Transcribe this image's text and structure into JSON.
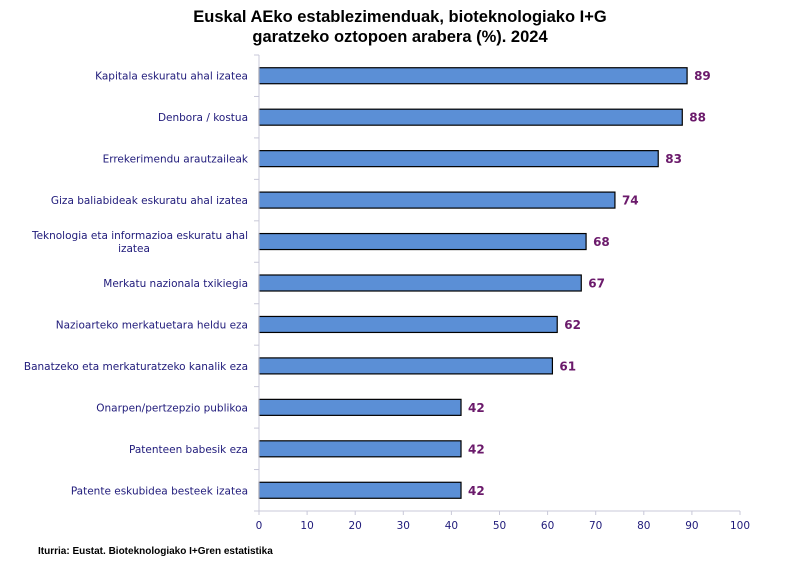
{
  "chart_data": {
    "type": "bar",
    "orientation": "horizontal",
    "title": [
      "Euskal AEko establezimenduak,  bioteknologiako I+G",
      "garatzeko oztopoen arabera (%). 2024"
    ],
    "xlabel": "",
    "ylabel": "",
    "xlim": [
      0,
      100
    ],
    "xticks": [
      0,
      10,
      20,
      30,
      40,
      50,
      60,
      70,
      80,
      90,
      100
    ],
    "grid": false,
    "legend": "none",
    "categories": [
      [
        "Kapitala eskuratu ahal izatea"
      ],
      [
        "Denbora / kostua"
      ],
      [
        "Errekerimendu arautzaileak"
      ],
      [
        "Giza baliabideak eskuratu ahal izatea"
      ],
      [
        "Teknologia eta informazioa eskuratu ahal",
        "izatea"
      ],
      [
        "Merkatu nazionala txikiegia"
      ],
      [
        "Nazioarteko merkatuetara heldu eza"
      ],
      [
        "Banatzeko eta merkaturatzeko kanalik eza"
      ],
      [
        "Onarpen/pertzepzio publikoa"
      ],
      [
        "Patenteen babesik eza"
      ],
      [
        "Patente eskubidea besteek izatea"
      ]
    ],
    "values": [
      89,
      88,
      83,
      74,
      68,
      67,
      62,
      61,
      42,
      42,
      42
    ],
    "colors": {
      "bar_fill": "#5b8fd6",
      "bar_stroke": "#000000",
      "data_label": "#6b1a6b",
      "axis_label": "#1f1a7a",
      "axis_line": "#c8c8d8"
    },
    "source": "Iturria: Eustat. Bioteknologiako I+Gren estatistika"
  }
}
